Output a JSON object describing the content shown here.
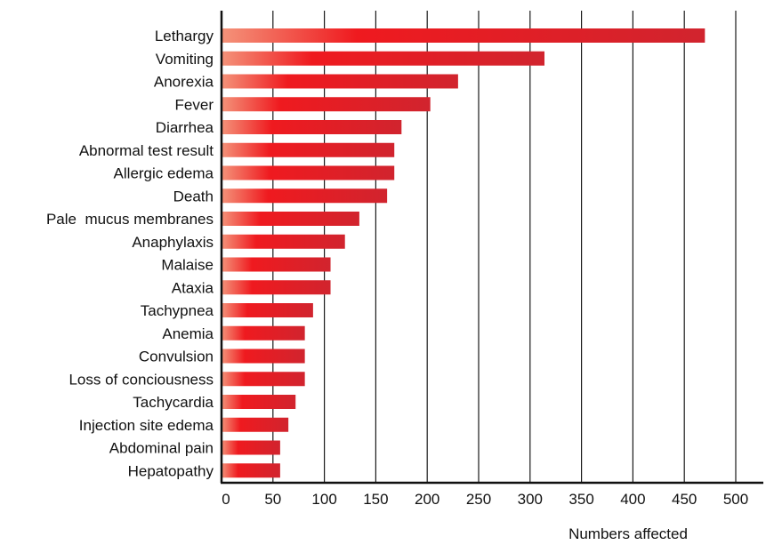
{
  "chart_data": {
    "type": "bar",
    "orientation": "horizontal",
    "title": "",
    "xlabel": "Numbers affected",
    "ylabel": "",
    "xlim": [
      0,
      500
    ],
    "xticks": [
      0,
      50,
      100,
      150,
      200,
      250,
      300,
      350,
      400,
      450,
      500
    ],
    "grid": "vertical",
    "bar_colors": {
      "start": "#f4937a",
      "mid": "#ef1a1f",
      "end": "#d1242e"
    },
    "categories": [
      "Lethargy",
      "Vomiting",
      "Anorexia",
      "Fever",
      "Diarrhea",
      "Abnormal test result",
      "Allergic edema",
      "Death",
      "Pale  mucus membranes",
      "Anaphylaxis",
      "Malaise",
      "Ataxia",
      "Tachypnea",
      "Anemia",
      "Convulsion",
      "Loss of conciousness",
      "Tachycardia",
      "Injection site edema",
      "Abdominal pain",
      "Hepatopathy"
    ],
    "values": [
      470,
      314,
      230,
      203,
      175,
      168,
      168,
      161,
      134,
      120,
      106,
      106,
      89,
      81,
      81,
      81,
      72,
      65,
      57,
      57
    ]
  }
}
